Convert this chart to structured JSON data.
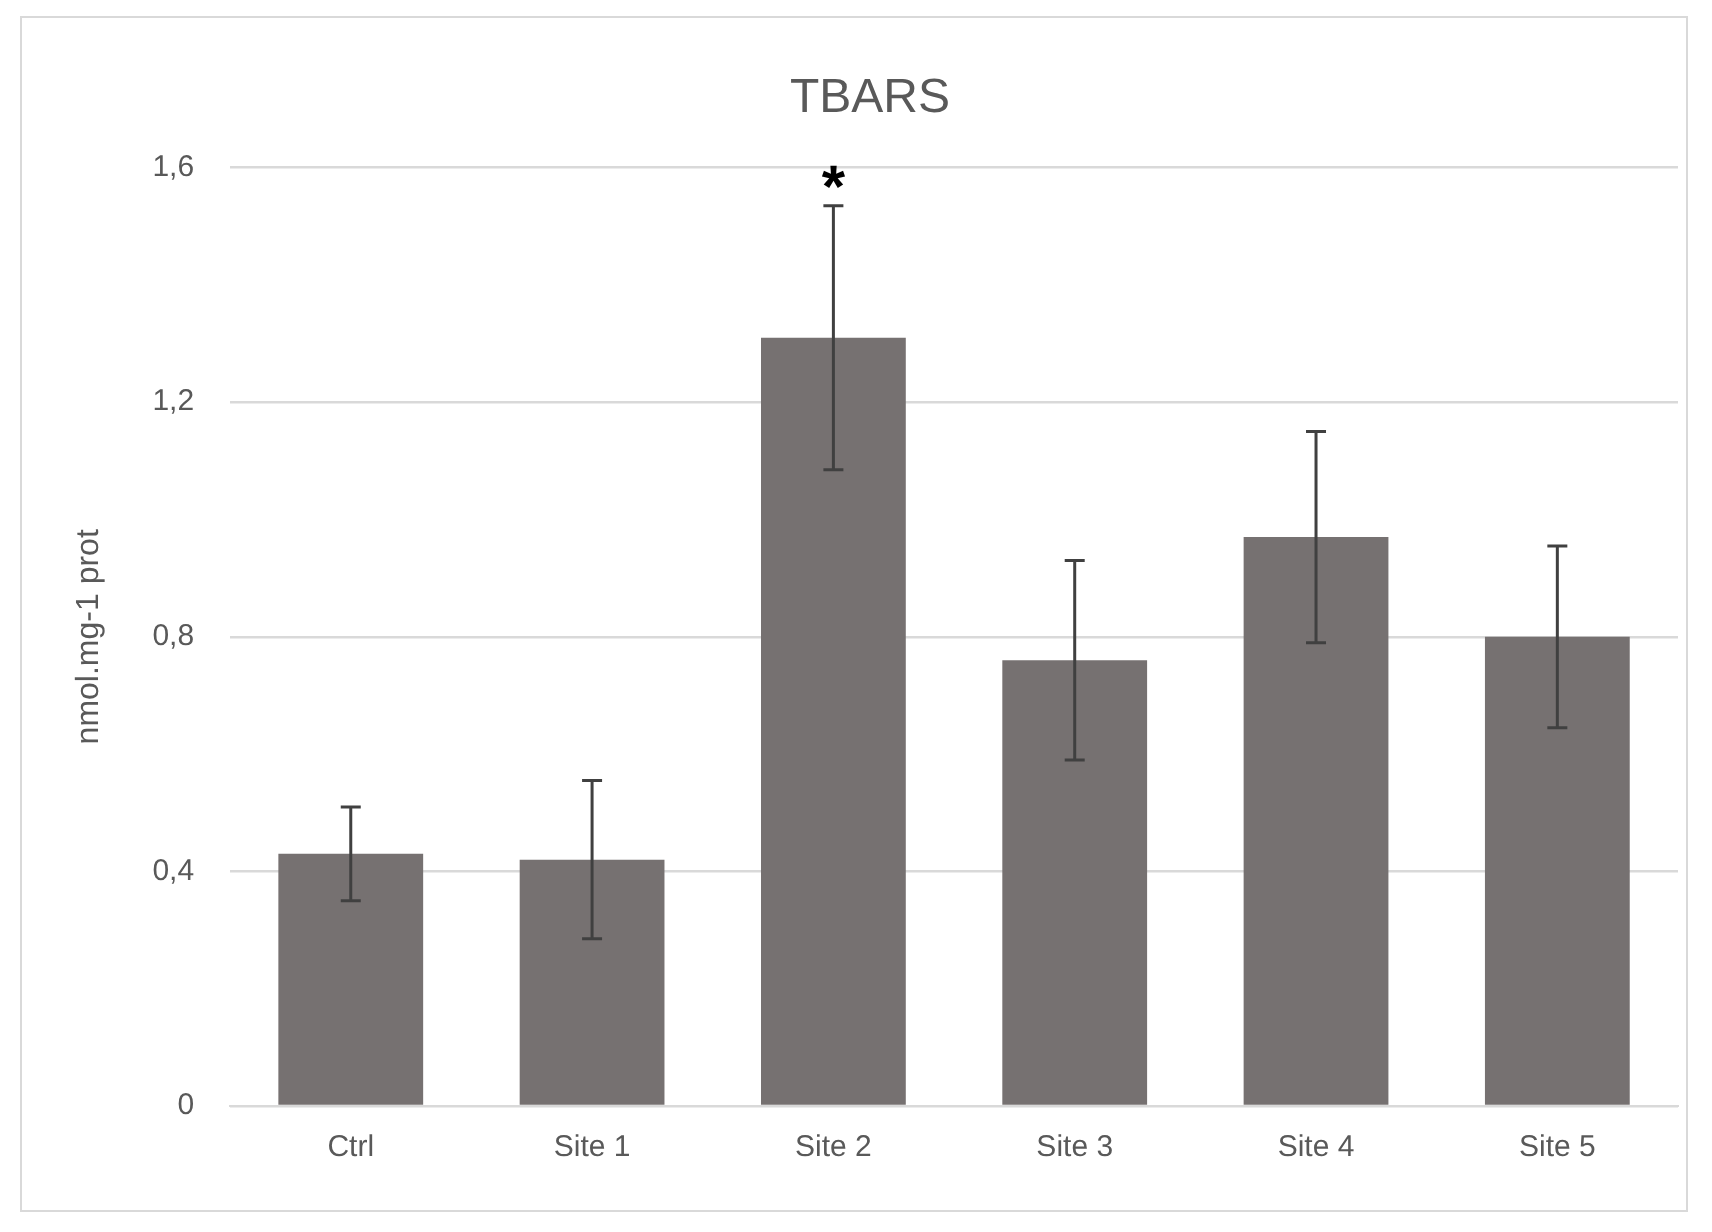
{
  "chart_data": {
    "type": "bar",
    "title": "TBARS",
    "ylabel": "nmol.mg-1 prot",
    "categories": [
      "Ctrl",
      "Site 1",
      "Site 2",
      "Site 3",
      "Site 4",
      "Site 5"
    ],
    "values": [
      0.43,
      0.42,
      1.31,
      0.76,
      0.97,
      0.8
    ],
    "errors": [
      0.08,
      0.135,
      0.225,
      0.17,
      0.18,
      0.155
    ],
    "color": "#767171",
    "ylim": [
      0,
      1.6
    ],
    "yticks": [
      0,
      {
        "value": 0.4,
        "label": "0,4"
      },
      {
        "value": 0.8,
        "label": "0,8"
      },
      {
        "value": 1.2,
        "label": "1,2"
      },
      {
        "value": 1.6,
        "label": "1,6"
      }
    ],
    "grid": "y",
    "annotations": [
      {
        "text": "*",
        "x": "Site 2",
        "y": 1.54
      }
    ]
  }
}
